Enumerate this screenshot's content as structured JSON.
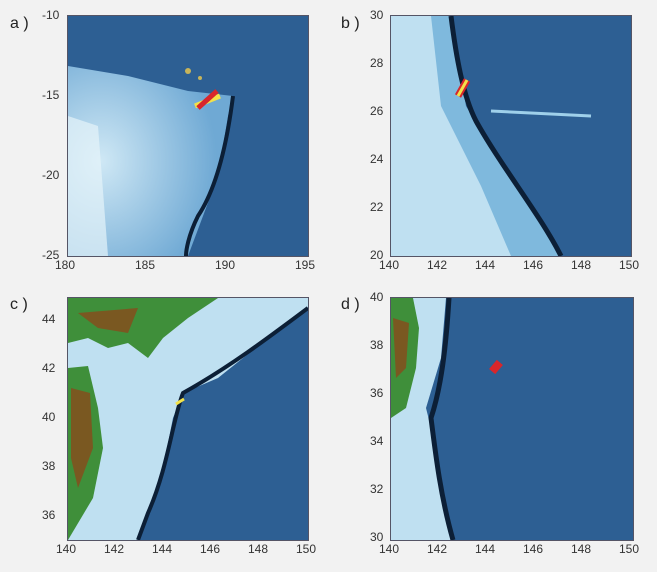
{
  "panels": [
    {
      "label": "a )",
      "xticks": [
        "180",
        "185",
        "190",
        "195"
      ],
      "yticks": [
        "-10",
        "-15",
        "-20",
        "-25"
      ]
    },
    {
      "label": "b )",
      "xticks": [
        "140",
        "142",
        "144",
        "146",
        "148",
        "150"
      ],
      "yticks": [
        "30",
        "28",
        "26",
        "24",
        "22",
        "20"
      ]
    },
    {
      "label": "c )",
      "xticks": [
        "140",
        "142",
        "144",
        "146",
        "148",
        "150"
      ],
      "yticks": [
        "44",
        "42",
        "40",
        "38",
        "36"
      ]
    },
    {
      "label": "d )",
      "xticks": [
        "140",
        "142",
        "144",
        "146",
        "148",
        "150"
      ],
      "yticks": [
        "40",
        "38",
        "36",
        "34",
        "32",
        "30"
      ]
    }
  ],
  "colors": {
    "deep_ocean": "#2a5a8c",
    "shelf": "#a9d3ea",
    "trench": "#0c1f36",
    "land_green": "#3f8f3a",
    "land_brown": "#8a4a1c",
    "marker_red": "#d8262b",
    "marker_yellow": "#f2e24a"
  }
}
